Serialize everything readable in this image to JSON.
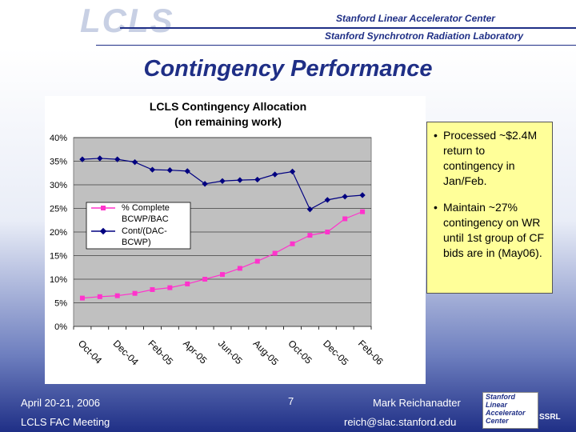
{
  "header": {
    "logo_text": "LCLS",
    "org_line1": "Stanford Linear Accelerator Center",
    "org_line2": "Stanford Synchrotron Radiation Laboratory"
  },
  "slide_title": "Contingency Performance",
  "callout": {
    "bullets": [
      "Processed ~$2.4M return to contingency in Jan/Feb.",
      "Maintain ~27% contingency on WR until 1st group of CF bids are in (May06)."
    ]
  },
  "footer": {
    "date": "April 20-21, 2006",
    "meeting": "LCLS FAC Meeting",
    "page": "7",
    "author": "Mark Reichanadter",
    "email": "reich@slac.stanford.edu",
    "logo_text": [
      "Stanford",
      "Linear",
      "Accelerator",
      "Center"
    ],
    "ssrl": "SSRL"
  },
  "colors": {
    "plot_bg": "#c0c0c0",
    "pink": "#ff33cc",
    "navy": "#000080"
  },
  "chart_data": {
    "type": "line",
    "title": [
      "LCLS Contingency Allocation",
      "(on remaining work)"
    ],
    "yticks": [
      "40%",
      "35%",
      "30%",
      "25%",
      "20%",
      "15%",
      "10%",
      "5%",
      "0%"
    ],
    "ylim": [
      0,
      40
    ],
    "xtick_labels": [
      "Oct-04",
      "Dec-04",
      "Feb-05",
      "Apr-05",
      "Jun-05",
      "Aug-05",
      "Oct-05",
      "Dec-05",
      "Feb-06"
    ],
    "n_points": 17,
    "series": [
      {
        "name": "% Complete BCWP/BAC",
        "legend_lines": [
          "% Complete",
          "BCWP/BAC"
        ],
        "values": [
          6.0,
          6.3,
          6.5,
          7.0,
          7.8,
          8.2,
          9.0,
          10.0,
          11.0,
          12.3,
          13.8,
          15.5,
          17.5,
          19.3,
          20.0,
          22.8,
          24.3
        ]
      },
      {
        "name": "Cont/(DAC-BCWP)",
        "legend_lines": [
          "Cont/(DAC-",
          "BCWP)"
        ],
        "values": [
          35.4,
          35.6,
          35.4,
          34.8,
          33.2,
          33.1,
          32.9,
          30.2,
          30.8,
          31.0,
          31.1,
          32.2,
          32.8,
          24.8,
          26.8,
          27.5,
          27.8
        ]
      }
    ]
  }
}
